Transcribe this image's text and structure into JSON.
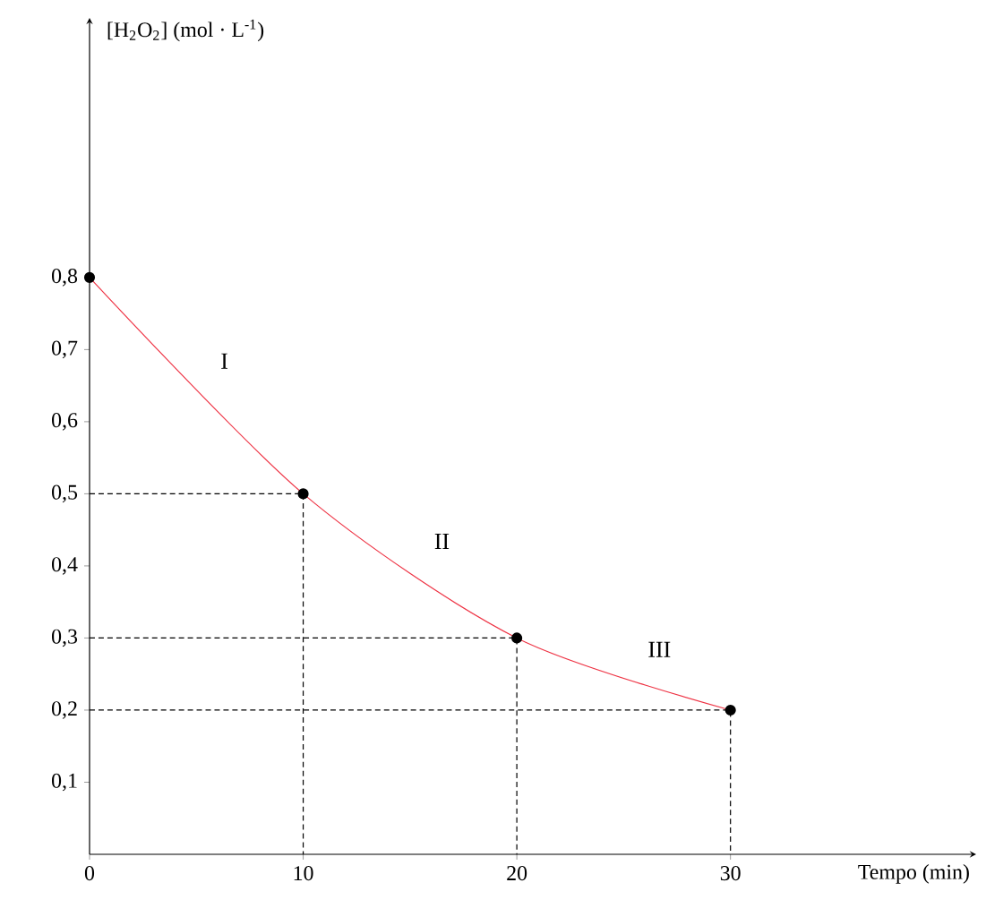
{
  "chart_data": {
    "type": "line",
    "xlabel": "Tempo (min)",
    "ylabel": "[H$_{2}$O$_{2}$] (mol · L$^{-1}$)",
    "xlim": [
      0,
      41.5
    ],
    "ylim": [
      0,
      1.16
    ],
    "xticks": [
      0,
      10,
      20,
      30
    ],
    "yticks": [
      {
        "value": 0.1,
        "label": "0,1"
      },
      {
        "value": 0.2,
        "label": "0,2"
      },
      {
        "value": 0.3,
        "label": "0,3"
      },
      {
        "value": 0.4,
        "label": "0,4"
      },
      {
        "value": 0.5,
        "label": "0,5"
      },
      {
        "value": 0.6,
        "label": "0,6"
      },
      {
        "value": 0.7,
        "label": "0,7"
      },
      {
        "value": 0.8,
        "label": "0,8"
      }
    ],
    "series": [
      {
        "x": [
          0,
          10,
          20,
          30
        ],
        "values": [
          0.8,
          0.5,
          0.3,
          0.2
        ],
        "color": "#ee3344",
        "line_style": "solid"
      },
      {
        "type": "scatter",
        "x": [
          0,
          10,
          20,
          30
        ],
        "values": [
          0.8,
          0.5,
          0.3,
          0.2
        ],
        "color": "#000000",
        "marker": "circle"
      },
      {
        "x": [
          0,
          10,
          10
        ],
        "values": [
          0.5,
          0.5,
          0
        ],
        "color": "#000000",
        "marker": "none",
        "line_style": "dashed"
      },
      {
        "x": [
          0,
          20,
          20
        ],
        "values": [
          0.3,
          0.3,
          0
        ],
        "color": "#000000",
        "marker": "none",
        "line_style": "dashed"
      },
      {
        "x": [
          0,
          30,
          30
        ],
        "values": [
          0.2,
          0.2,
          0
        ],
        "color": "#000000",
        "marker": "none",
        "line_style": "dashed"
      }
    ],
    "annotations": [
      "I",
      "II",
      "III"
    ]
  }
}
